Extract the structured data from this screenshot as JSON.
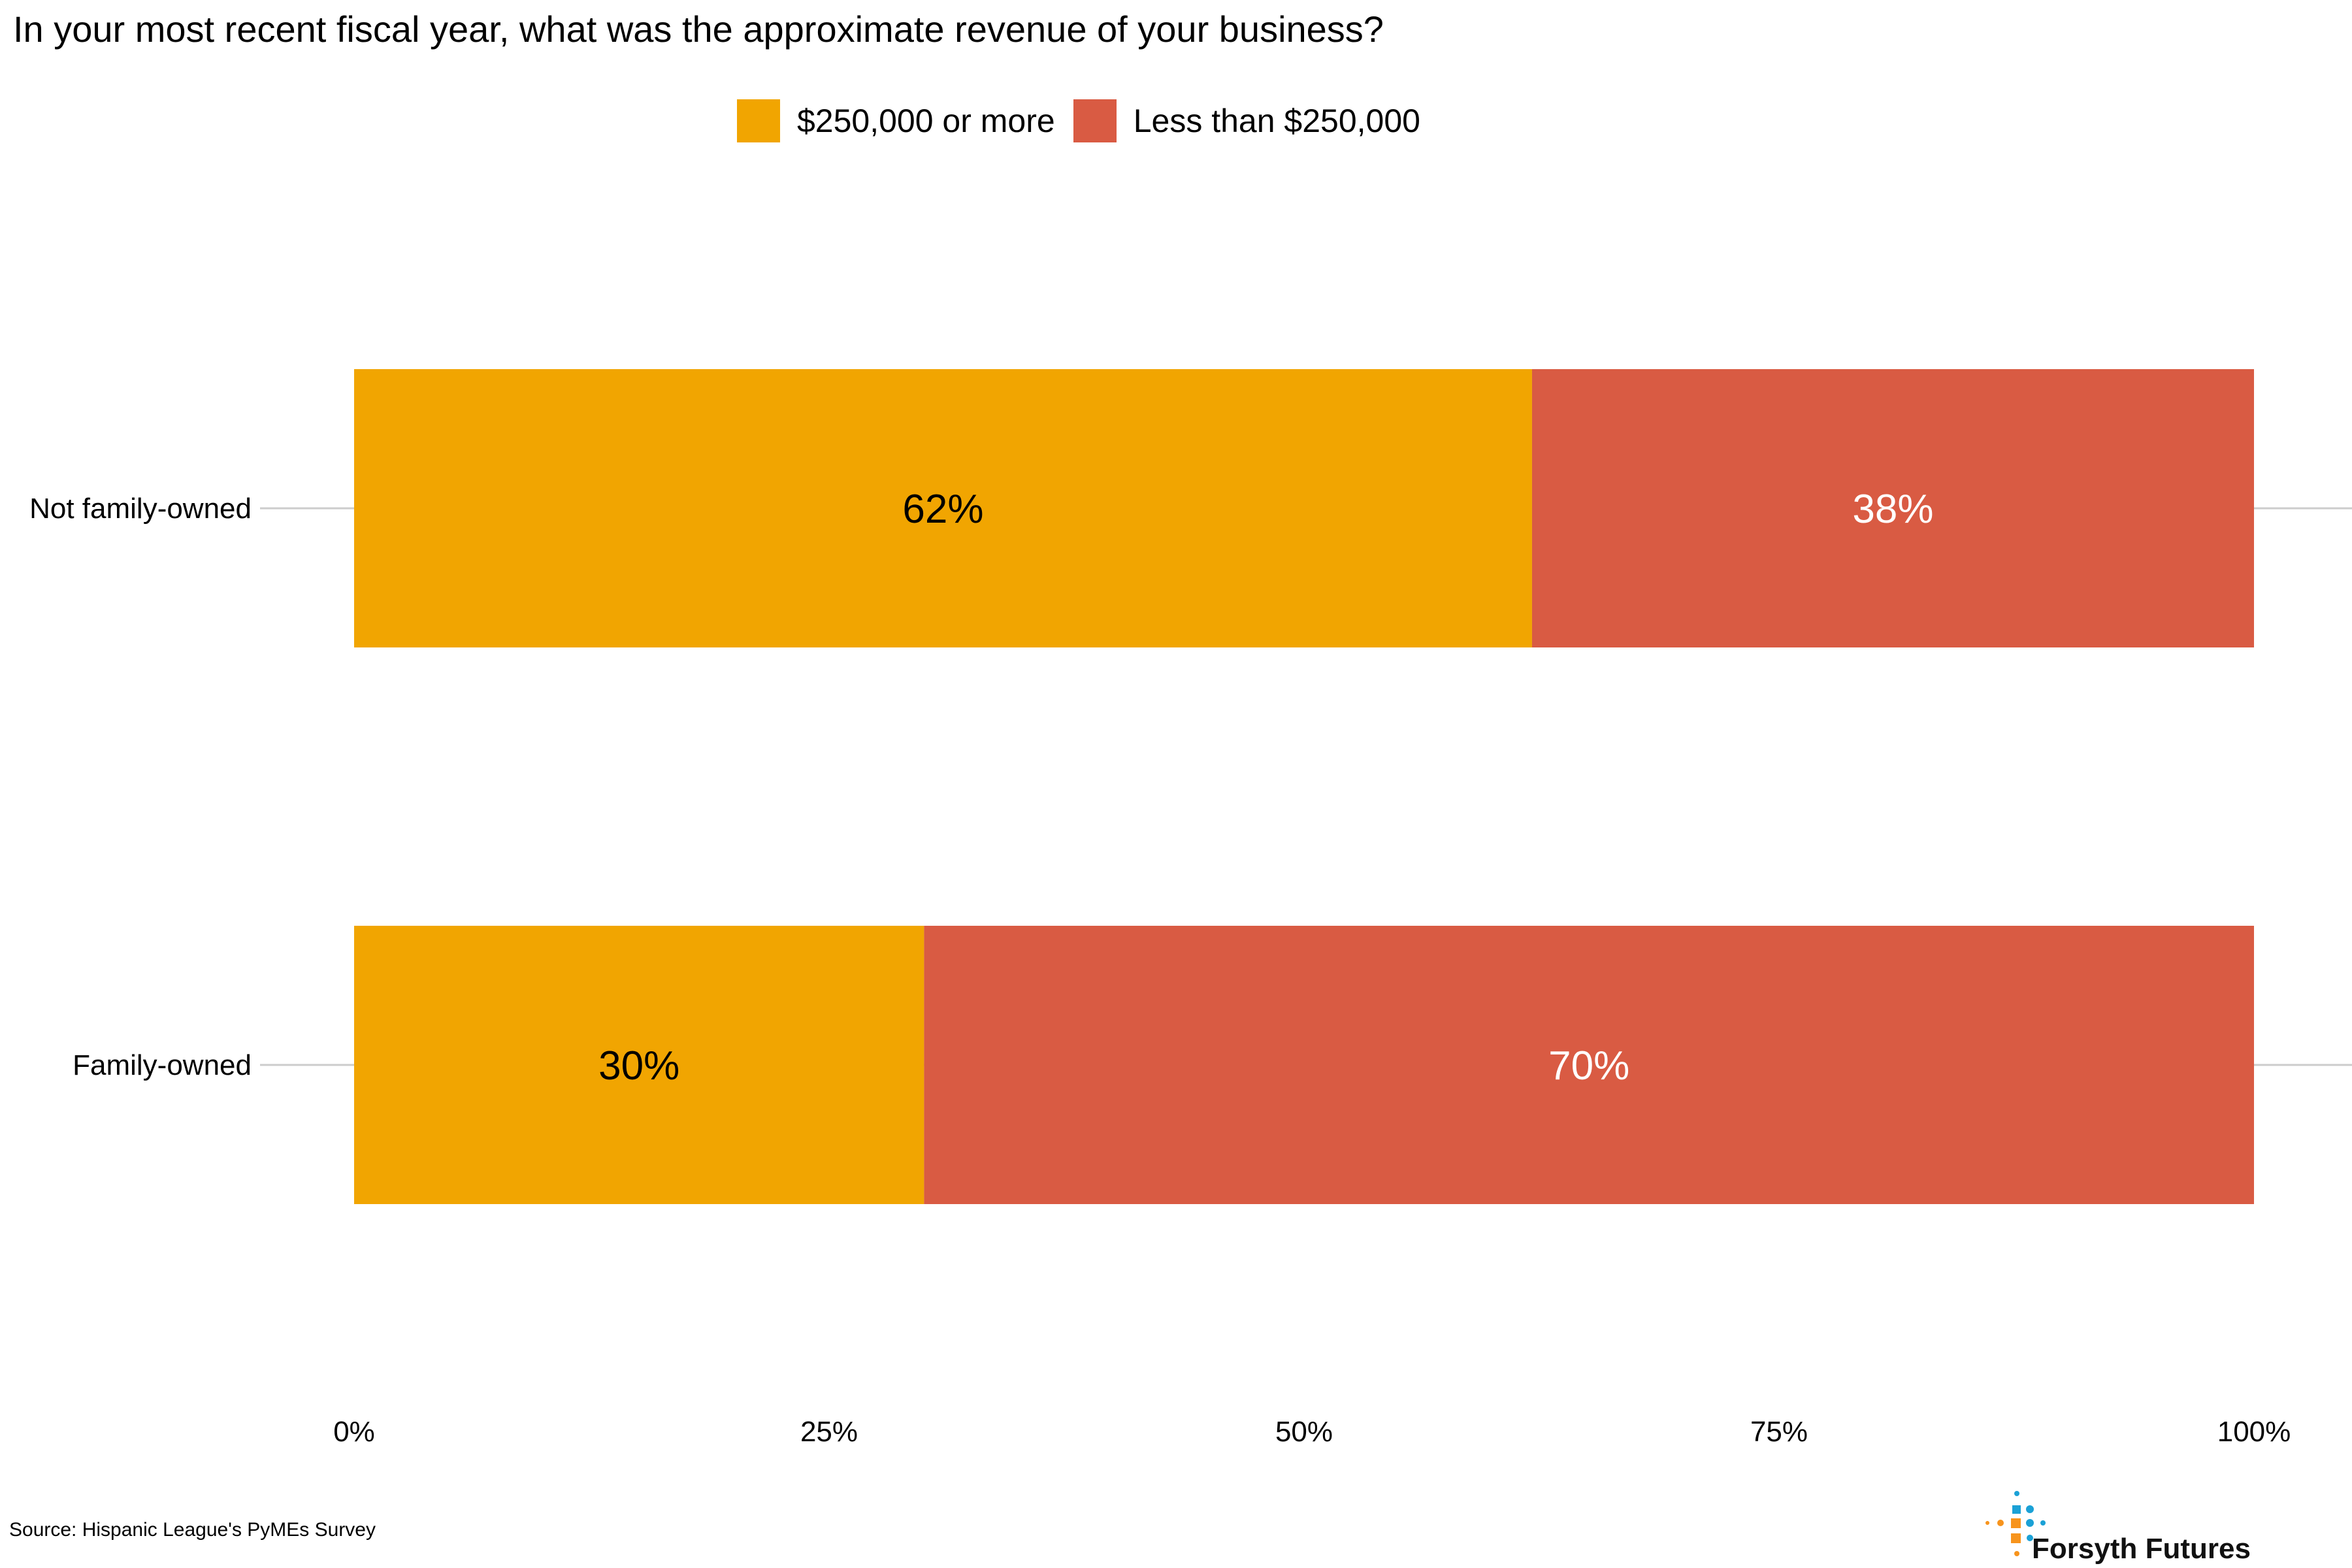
{
  "chart_data": {
    "type": "bar",
    "orientation": "horizontal",
    "stacked": true,
    "title": "In your most recent fiscal year, what was the approximate revenue of your business?",
    "categories": [
      "Not family-owned",
      "Family-owned"
    ],
    "series": [
      {
        "name": "$250,000 or more",
        "color": "#F1A501",
        "label_color": "#000000",
        "values": [
          62,
          30
        ],
        "labels": [
          "62%",
          "30%"
        ]
      },
      {
        "name": "Less than $250,000",
        "color": "#D95B43",
        "label_color": "#ffffff",
        "values": [
          38,
          70
        ],
        "labels": [
          "38%",
          "70%"
        ]
      }
    ],
    "xlim": [
      0,
      100
    ],
    "xticks": [
      0,
      25,
      50,
      75,
      100
    ],
    "xtick_labels": [
      "0%",
      "25%",
      "50%",
      "75%",
      "100%"
    ],
    "grid": {
      "horizontal": true,
      "vertical": false
    },
    "legend_position": "top-center"
  },
  "footer": {
    "source": "Source: Hispanic League's PyMEs Survey",
    "brand": "Forsyth Futures"
  },
  "colors": {
    "brand_blue": "#1BA1D6",
    "brand_orange": "#F7941D",
    "gridline": "#CCCCCC"
  }
}
